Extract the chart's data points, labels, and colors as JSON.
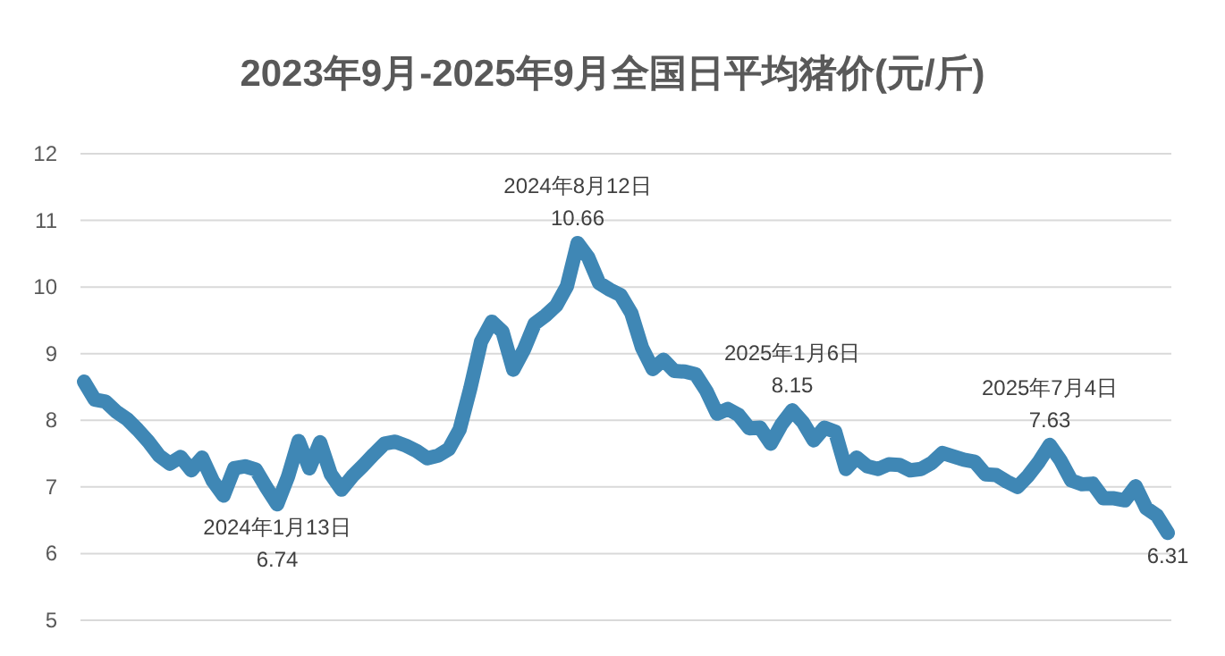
{
  "chart_data": {
    "type": "line",
    "title": "2023年9月-2025年9月全国日平均猪价(元/斤)",
    "line_style": "solid",
    "grid": "y",
    "tick_labels": "y",
    "ylim": [
      5,
      12
    ],
    "yticks": [
      5,
      6,
      7,
      8,
      9,
      10,
      11,
      12
    ],
    "categories": [
      null,
      null,
      null,
      null,
      null,
      null,
      null,
      null,
      null,
      null,
      null,
      null,
      null,
      null,
      null,
      null,
      null,
      null,
      null,
      null,
      null,
      null,
      null,
      null,
      null,
      null,
      null,
      null,
      null,
      null,
      null,
      null,
      null,
      null,
      null,
      null,
      null,
      null,
      null,
      null,
      null,
      null,
      null,
      null,
      null,
      null,
      null,
      null,
      null,
      null,
      null,
      null,
      null,
      null,
      null,
      null,
      null,
      null,
      null,
      null,
      null,
      null,
      null,
      null,
      null,
      null,
      null,
      null,
      null,
      null,
      null,
      null,
      null,
      null,
      null,
      null,
      null,
      null,
      null,
      null,
      null,
      null,
      null,
      null,
      null,
      null,
      null,
      null,
      null,
      null,
      null,
      null,
      null,
      null,
      null,
      null,
      null,
      null,
      null,
      null,
      null,
      null
    ],
    "series": [
      {
        "color": "#3f87b5",
        "values": [
          8.58,
          8.31,
          8.28,
          8.13,
          8.02,
          7.86,
          7.68,
          7.47,
          7.35,
          7.45,
          7.25,
          7.44,
          7.09,
          6.87,
          7.28,
          7.31,
          7.26,
          6.99,
          6.74,
          7.15,
          7.69,
          7.28,
          7.67,
          7.19,
          6.96,
          7.16,
          7.32,
          7.49,
          7.65,
          7.68,
          7.62,
          7.54,
          7.43,
          7.47,
          7.57,
          7.86,
          8.48,
          9.18,
          9.48,
          9.33,
          8.76,
          9.06,
          9.45,
          9.57,
          9.72,
          10.01,
          10.66,
          10.44,
          10.06,
          9.96,
          9.88,
          9.61,
          9.09,
          8.77,
          8.91,
          8.74,
          8.73,
          8.69,
          8.44,
          8.1,
          8.17,
          8.08,
          7.88,
          7.89,
          7.65,
          7.94,
          8.15,
          7.97,
          7.7,
          7.89,
          7.83,
          7.27,
          7.44,
          7.31,
          7.27,
          7.34,
          7.33,
          7.25,
          7.27,
          7.36,
          7.51,
          7.46,
          7.41,
          7.38,
          7.19,
          7.18,
          7.08,
          7.0,
          7.17,
          7.38,
          7.63,
          7.4,
          7.1,
          7.04,
          7.05,
          6.83,
          6.83,
          6.8,
          7.01,
          6.68,
          6.57,
          6.31
        ]
      }
    ],
    "annotations": [
      {
        "text": "2024年1月13日\n6.74",
        "y": 6.74
      },
      {
        "text": "2024年8月12日\n10.66",
        "y": 10.66
      },
      {
        "text": "2025年1月6日\n8.15",
        "y": 8.15
      },
      {
        "text": "2025年7月4日\n7.63",
        "y": 7.63
      },
      {
        "text": "6.31",
        "y": 6.31
      }
    ]
  }
}
